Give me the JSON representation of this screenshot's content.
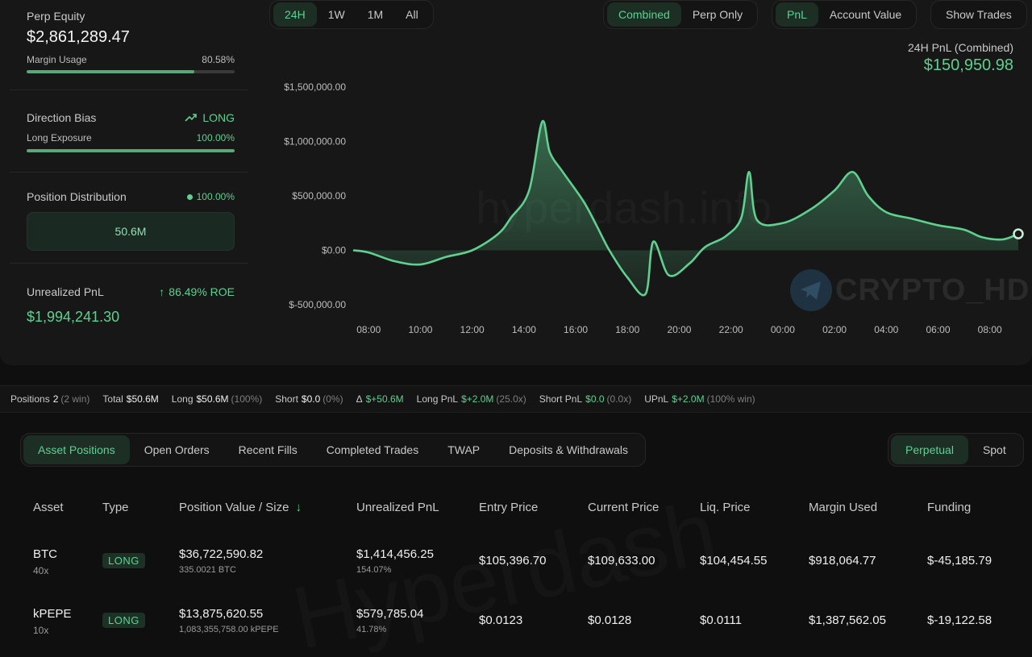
{
  "summary": {
    "perp_equity_label": "Perp Equity",
    "perp_equity_value": "$2,861,289.47",
    "margin_usage_label": "Margin Usage",
    "margin_usage_value": "80.58%",
    "margin_usage_fraction": 0.8058,
    "direction_bias_label": "Direction Bias",
    "direction_bias_value": "LONG",
    "long_exposure_label": "Long Exposure",
    "long_exposure_value": "100.00%",
    "long_exposure_fraction": 1.0,
    "position_distribution_label": "Position Distribution",
    "position_distribution_value": "100.00%",
    "position_distribution_amount": "50.6M",
    "unrealized_pnl_label": "Unrealized PnL",
    "unrealized_pnl_roe": "86.49% ROE",
    "unrealized_pnl_value": "$1,994,241.30"
  },
  "range_tabs": [
    "24H",
    "1W",
    "1M",
    "All"
  ],
  "range_active": "24H",
  "mode_tabs": [
    "Combined",
    "Perp Only"
  ],
  "metric_tabs": [
    "PnL",
    "Account Value"
  ],
  "show_trades_label": "Show Trades",
  "chart_header": {
    "label": "24H PnL (Combined)",
    "value": "$150,950.98"
  },
  "watermarks": {
    "site": "hyperdash.info",
    "brand": "CRYPTO_HD",
    "table": "Hyperdash"
  },
  "chart_data": {
    "type": "area",
    "title": "24H PnL (Combined)",
    "ylim": [
      -500000,
      1500000
    ],
    "y_ticks": [
      "$1,500,000.00",
      "$1,000,000.00",
      "$500,000.00",
      "$0.00",
      "$-500,000.00"
    ],
    "y_tick_values": [
      1500000,
      1000000,
      500000,
      0,
      -500000
    ],
    "x_ticks": [
      "08:00",
      "10:00",
      "12:00",
      "14:00",
      "16:00",
      "18:00",
      "20:00",
      "22:00",
      "00:00",
      "02:00",
      "04:00",
      "06:00",
      "08:00"
    ],
    "x_range_hours": [
      7.4,
      33.1
    ],
    "color": "#5fd08f",
    "series": [
      {
        "points": [
          [
            7.4,
            0
          ],
          [
            8.0,
            -20000
          ],
          [
            9.0,
            -100000
          ],
          [
            10.0,
            -130000
          ],
          [
            11.0,
            -60000
          ],
          [
            12.0,
            0
          ],
          [
            13.0,
            150000
          ],
          [
            13.5,
            300000
          ],
          [
            14.2,
            550000
          ],
          [
            14.7,
            1180000
          ],
          [
            15.0,
            900000
          ],
          [
            15.5,
            720000
          ],
          [
            16.3,
            450000
          ],
          [
            16.8,
            230000
          ],
          [
            17.3,
            0
          ],
          [
            18.0,
            -250000
          ],
          [
            18.7,
            -400000
          ],
          [
            19.0,
            80000
          ],
          [
            19.6,
            -230000
          ],
          [
            20.4,
            -120000
          ],
          [
            21.0,
            30000
          ],
          [
            21.8,
            130000
          ],
          [
            22.4,
            300000
          ],
          [
            22.7,
            720000
          ],
          [
            23.0,
            280000
          ],
          [
            24.0,
            250000
          ],
          [
            25.1,
            380000
          ],
          [
            26.0,
            550000
          ],
          [
            26.7,
            720000
          ],
          [
            27.3,
            500000
          ],
          [
            28.0,
            350000
          ],
          [
            29.0,
            290000
          ],
          [
            30.0,
            230000
          ],
          [
            31.0,
            190000
          ],
          [
            31.7,
            120000
          ],
          [
            32.5,
            100000
          ],
          [
            33.1,
            150950
          ]
        ]
      }
    ]
  },
  "stats": {
    "positions_label": "Positions",
    "positions_value": "2",
    "positions_note": "(2 win)",
    "total_label": "Total",
    "total_value": "$50.6M",
    "long_label": "Long",
    "long_value": "$50.6M",
    "long_note": "(100%)",
    "short_label": "Short",
    "short_value": "$0.0",
    "short_note": "(0%)",
    "delta_label": "Δ",
    "delta_value": "$+50.6M",
    "long_pnl_label": "Long PnL",
    "long_pnl_value": "$+2.0M",
    "long_pnl_note": "(25.0x)",
    "short_pnl_label": "Short PnL",
    "short_pnl_value": "$0.0",
    "short_pnl_note": "(0.0x)",
    "upnl_label": "UPnL",
    "upnl_value": "$+2.0M",
    "upnl_note": "(100% win)"
  },
  "position_tabs": [
    "Asset Positions",
    "Open Orders",
    "Recent Fills",
    "Completed Trades",
    "TWAP",
    "Deposits & Withdrawals"
  ],
  "market_tabs": [
    "Perpetual",
    "Spot"
  ],
  "table": {
    "headers": [
      "Asset",
      "Type",
      "Position Value / Size",
      "Unrealized PnL",
      "Entry Price",
      "Current Price",
      "Liq. Price",
      "Margin Used",
      "Funding"
    ],
    "sort_icon": "arrow-down-icon",
    "rows": [
      {
        "asset": "BTC",
        "leverage": "40x",
        "type": "LONG",
        "value": "$36,722,590.82",
        "size": "335.0021 BTC",
        "pnl": "$1,414,456.25",
        "pnl_pct": "154.07%",
        "entry": "$105,396.70",
        "current": "$109,633.00",
        "liq": "$104,454.55",
        "margin": "$918,064.77",
        "funding": "$-45,185.79"
      },
      {
        "asset": "kPEPE",
        "leverage": "10x",
        "type": "LONG",
        "value": "$13,875,620.55",
        "size": "1,083,355,758.00 kPEPE",
        "pnl": "$579,785.04",
        "pnl_pct": "41.78%",
        "entry": "$0.0123",
        "current": "$0.0128",
        "liq": "$0.0111",
        "margin": "$1,387,562.05",
        "funding": "$-19,122.58"
      }
    ]
  }
}
